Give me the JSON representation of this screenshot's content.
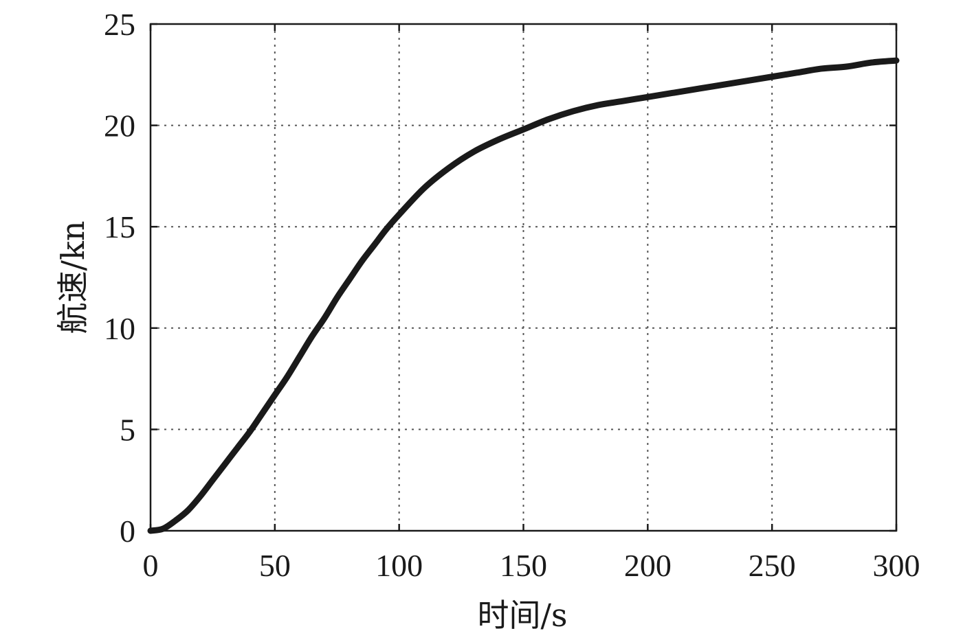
{
  "chart_data": {
    "type": "line",
    "title": "",
    "xlabel": "时间/s",
    "ylabel": "航速/kn",
    "xlim": [
      0,
      300
    ],
    "ylim": [
      0,
      25
    ],
    "xticks": [
      0,
      50,
      100,
      150,
      200,
      250,
      300
    ],
    "yticks": [
      0,
      5,
      10,
      15,
      20,
      25
    ],
    "xtick_labels": [
      "0",
      "50",
      "100",
      "150",
      "200",
      "250",
      "300"
    ],
    "ytick_labels": [
      "0",
      "5",
      "10",
      "15",
      "20",
      "25"
    ],
    "grid": true,
    "grid_style": "dotted",
    "line_color": "#1a1a1a",
    "series": [
      {
        "x": [
          0,
          5,
          10,
          15,
          20,
          25,
          30,
          35,
          40,
          45,
          50,
          55,
          60,
          65,
          70,
          75,
          80,
          85,
          90,
          95,
          100,
          110,
          120,
          130,
          140,
          150,
          160,
          170,
          180,
          190,
          200,
          210,
          220,
          230,
          240,
          250,
          260,
          270,
          280,
          290,
          300
        ],
        "y": [
          0,
          0.1,
          0.5,
          1.0,
          1.7,
          2.5,
          3.3,
          4.1,
          4.9,
          5.8,
          6.7,
          7.6,
          8.6,
          9.6,
          10.5,
          11.5,
          12.4,
          13.3,
          14.1,
          14.9,
          15.6,
          16.9,
          17.9,
          18.7,
          19.3,
          19.8,
          20.3,
          20.7,
          21.0,
          21.2,
          21.4,
          21.6,
          21.8,
          22.0,
          22.2,
          22.4,
          22.6,
          22.8,
          22.9,
          23.1,
          23.2
        ]
      }
    ]
  }
}
